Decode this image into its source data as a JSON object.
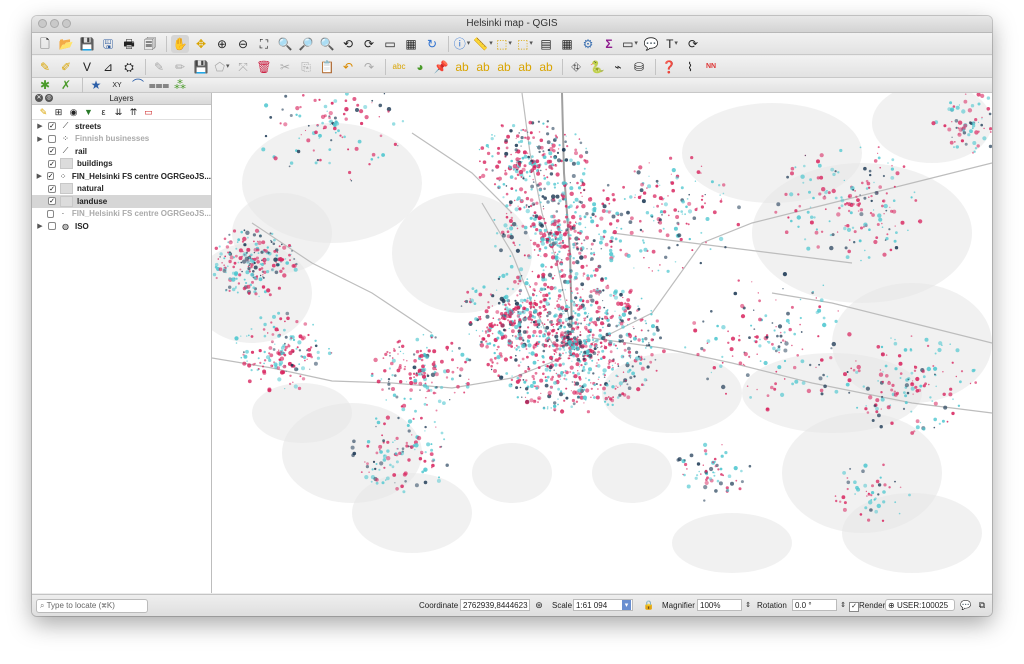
{
  "window": {
    "title": "Helsinki map - QGIS"
  },
  "toolbar1": {
    "icons": [
      "new-project",
      "open-project",
      "save-project",
      "save-as",
      "print-layout",
      "layout-manager",
      "pan",
      "pan-to-selection",
      "zoom-in",
      "zoom-out",
      "zoom-full",
      "zoom-to-selection",
      "zoom-to-layer",
      "zoom-native",
      "zoom-last",
      "zoom-next",
      "new-map-view",
      "new-3d-view",
      "refresh",
      "identify",
      "measure",
      "select",
      "deselect",
      "attribute-table",
      "field-calculator",
      "processing-toolbox",
      "statistical-summary",
      "annotation",
      "text-annotation",
      "tips",
      "sync"
    ]
  },
  "toolbar2": {
    "icons": [
      "edits",
      "toggle-editing",
      "digitize",
      "add-feature",
      "move-feature",
      "vertex-tool",
      "delete",
      "cut",
      "copy",
      "paste",
      "undo",
      "redo",
      "label",
      "diagram",
      "pin-labels",
      "show-hide-labels",
      "move-label",
      "rotate-label",
      "change-label",
      "label-toolbar",
      "osm",
      "python",
      "gps",
      "sql",
      "help",
      "vertex",
      "nn-join"
    ]
  },
  "toolbar3": {
    "icons": [
      "geoprocessing",
      "plugin",
      "star",
      "xy-tool",
      "curve",
      "road",
      "grid"
    ]
  },
  "layers_panel": {
    "title": "Layers",
    "items": [
      {
        "name": "streets",
        "checked": true,
        "expandable": true,
        "dim": false,
        "selected": false,
        "symbol": "line-icon"
      },
      {
        "name": "Finnish businesses",
        "checked": false,
        "expandable": true,
        "dim": true,
        "selected": false,
        "symbol": "points-icon"
      },
      {
        "name": "rail",
        "checked": true,
        "expandable": false,
        "dim": false,
        "selected": false,
        "symbol": "line-icon"
      },
      {
        "name": "buildings",
        "checked": true,
        "expandable": false,
        "dim": false,
        "selected": false,
        "symbol": "polygon-icon"
      },
      {
        "name": "FIN_Helsinki FS centre OGRGeoJS...",
        "checked": true,
        "expandable": true,
        "dim": false,
        "selected": false,
        "symbol": "points-icon"
      },
      {
        "name": "natural",
        "checked": true,
        "expandable": false,
        "dim": false,
        "selected": false,
        "symbol": "polygon-icon"
      },
      {
        "name": "landuse",
        "checked": true,
        "expandable": false,
        "dim": false,
        "selected": true,
        "symbol": "polygon-icon"
      },
      {
        "name": "FIN_Helsinki FS centre OGRGeoJS...",
        "checked": false,
        "expandable": false,
        "dim": true,
        "selected": false,
        "symbol": "point-icon"
      },
      {
        "name": "ISO",
        "checked": false,
        "expandable": true,
        "dim": false,
        "selected": false,
        "symbol": "group-icon"
      }
    ]
  },
  "statusbar": {
    "locate_placeholder": "Type to locate (⌘K)",
    "coordinate_label": "Coordinate",
    "coordinate_value": "2762939,8444623",
    "scale_label": "Scale",
    "scale_value": "1:61 094",
    "magnifier_label": "Magnifier",
    "magnifier_value": "100%",
    "rotation_label": "Rotation",
    "rotation_value": "0.0 °",
    "render_label": "Render",
    "render_checked": true,
    "crs_value": "USER:100025"
  },
  "colors": {
    "pink": "#d8245e",
    "cyan": "#4cc6cf",
    "navy": "#1f3b56",
    "land": "#e6e6e6"
  }
}
